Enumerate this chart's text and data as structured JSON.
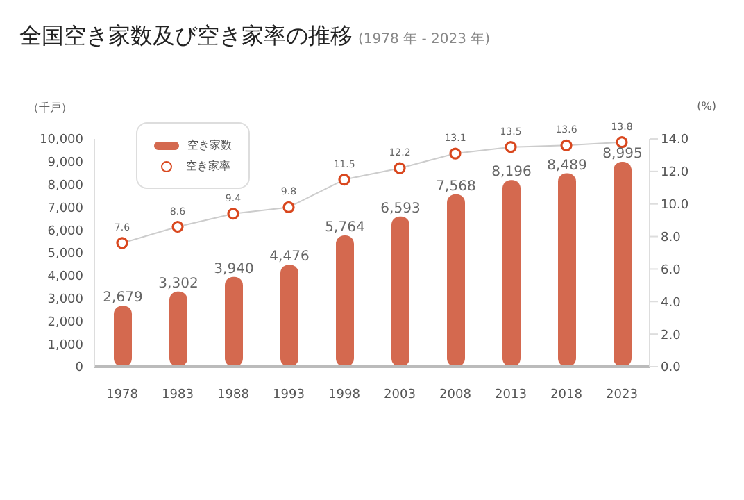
{
  "chart_data": {
    "type": "bar",
    "title": "全国空き家数及び空き家率の推移",
    "subtitle": "(1978 年 - 2023 年)",
    "ylabel": "（千戸）",
    "y2label": "(%)",
    "categories": [
      "1978",
      "1983",
      "1988",
      "1993",
      "1998",
      "2003",
      "2008",
      "2013",
      "2018",
      "2023"
    ],
    "series": [
      {
        "name": "空き家数",
        "color": "#d4694f",
        "values": [
          2679,
          3302,
          3940,
          4476,
          5764,
          6593,
          7568,
          8196,
          8489,
          8995
        ],
        "value_labels": [
          "2,679",
          "3,302",
          "3,940",
          "4,476",
          "5,764",
          "6,593",
          "7,568",
          "8,196",
          "8,489",
          "8,995"
        ]
      },
      {
        "name": "空き家率",
        "type": "line",
        "axis": "y2",
        "color": "#d9471e",
        "marker": "circle",
        "values": [
          7.6,
          8.6,
          9.4,
          9.8,
          11.5,
          12.2,
          13.1,
          13.5,
          13.6,
          13.8
        ],
        "value_labels": [
          "7.6",
          "8.6",
          "9.4",
          "9.8",
          "11.5",
          "12.2",
          "13.1",
          "13.5",
          "13.6",
          "13.8"
        ]
      }
    ],
    "ylim": [
      0,
      10000
    ],
    "yticks": [
      0,
      {
        "value": 1000,
        "label": "1,000"
      },
      {
        "value": 2000,
        "label": "2,000"
      },
      {
        "value": 3000,
        "label": "3,000"
      },
      {
        "value": 4000,
        "label": "4,000"
      },
      {
        "value": 5000,
        "label": "5,000"
      },
      {
        "value": 6000,
        "label": "6,000"
      },
      {
        "value": 7000,
        "label": "7,000"
      },
      {
        "value": 8000,
        "label": "8,000"
      },
      {
        "value": 9000,
        "label": "9,000"
      },
      {
        "value": 10000,
        "label": "10,000"
      }
    ],
    "y2lim": [
      0,
      14
    ],
    "y2ticks": [
      {
        "value": 0,
        "label": "0.0"
      },
      {
        "value": 2,
        "label": "2.0"
      },
      {
        "value": 4,
        "label": "4.0"
      },
      {
        "value": 6,
        "label": "6.0"
      },
      {
        "value": 8,
        "label": "8.0"
      },
      {
        "value": 10,
        "label": "10.0"
      },
      {
        "value": 12,
        "label": "12.0"
      },
      {
        "value": 14,
        "label": "14.0"
      }
    ],
    "grid": false,
    "legend": "top left"
  }
}
